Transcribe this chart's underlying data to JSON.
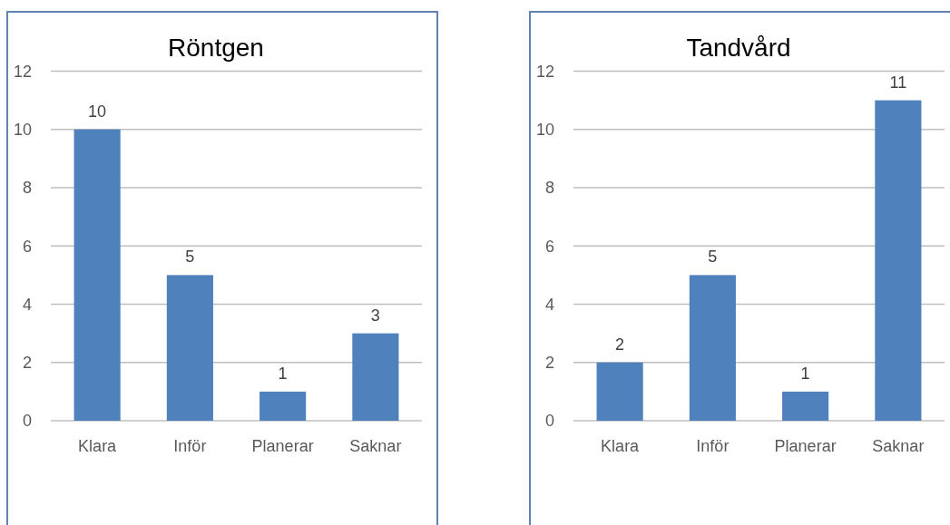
{
  "chart_data": [
    {
      "type": "bar",
      "title": "Röntgen",
      "categories": [
        "Klara",
        "Inför",
        "Planerar",
        "Saknar"
      ],
      "values": [
        10,
        5,
        1,
        3
      ],
      "color": "#4f81bd",
      "ylim": [
        0,
        12
      ],
      "yticks": [
        0,
        2,
        4,
        6,
        8,
        10,
        12
      ],
      "grid": "y",
      "data_labels": true
    },
    {
      "type": "bar",
      "title": "Tandvård",
      "categories": [
        "Klara",
        "Inför",
        "Planerar",
        "Saknar"
      ],
      "values": [
        2,
        5,
        1,
        11
      ],
      "color": "#4f81bd",
      "ylim": [
        0,
        12
      ],
      "yticks": [
        0,
        2,
        4,
        6,
        8,
        10,
        12
      ],
      "grid": "y",
      "data_labels": true
    }
  ]
}
